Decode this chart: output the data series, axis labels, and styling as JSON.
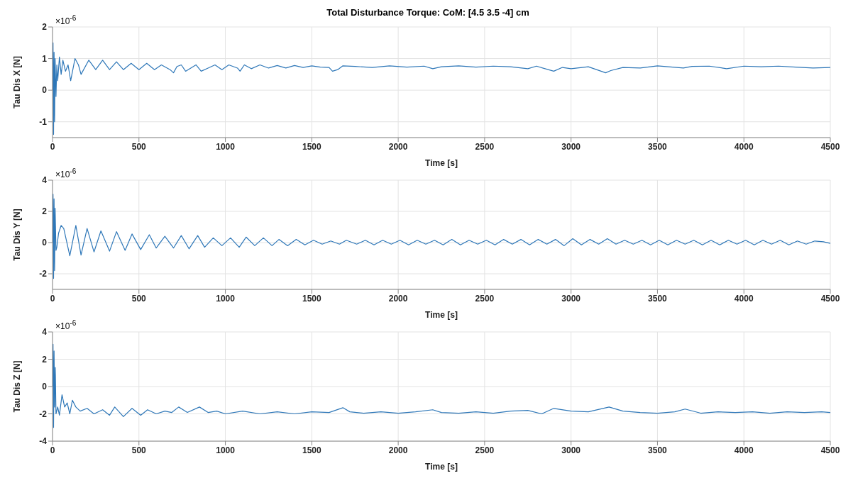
{
  "chart_data": [
    {
      "type": "line",
      "title": "Total Disturbance Torque: CoM: [4.5 3.5 -4] cm",
      "xlabel": "Time [s]",
      "ylabel": "Tau Dis X [N]",
      "annotations": [
        "×10$^{-6}$"
      ],
      "xlim": [
        0,
        4500
      ],
      "xticks": [
        0,
        500,
        1000,
        1500,
        2000,
        2500,
        3000,
        3500,
        4000,
        4500
      ],
      "ylim": [
        -1.5,
        2
      ],
      "yticks": [
        -1,
        0,
        1,
        2
      ],
      "grid": true,
      "series": [
        {
          "color": "#2e77b8",
          "x": [
            0,
            3,
            6,
            9,
            12,
            15,
            20,
            25,
            30,
            40,
            50,
            60,
            75,
            90,
            105,
            130,
            150,
            165,
            210,
            250,
            290,
            330,
            370,
            410,
            455,
            500,
            545,
            590,
            630,
            680,
            700,
            720,
            745,
            770,
            800,
            830,
            860,
            900,
            940,
            980,
            1020,
            1070,
            1085,
            1110,
            1150,
            1200,
            1250,
            1300,
            1350,
            1400,
            1450,
            1500,
            1550,
            1600,
            1620,
            1650,
            1680,
            1750,
            1850,
            1950,
            2050,
            2150,
            2200,
            2250,
            2350,
            2450,
            2550,
            2650,
            2750,
            2800,
            2900,
            2950,
            3000,
            3100,
            3200,
            3230,
            3300,
            3400,
            3500,
            3650,
            3700,
            3800,
            3900,
            4000,
            4100,
            4200,
            4300,
            4400,
            4500
          ],
          "values": [
            0,
            1.5,
            -1.4,
            1.2,
            -1.0,
            1.0,
            -0.2,
            0.8,
            0.3,
            1.05,
            0.5,
            0.95,
            0.6,
            0.8,
            0.3,
            1.0,
            0.8,
            0.5,
            0.95,
            0.65,
            0.95,
            0.65,
            0.9,
            0.65,
            0.85,
            0.65,
            0.85,
            0.65,
            0.8,
            0.65,
            0.55,
            0.75,
            0.8,
            0.6,
            0.7,
            0.8,
            0.6,
            0.7,
            0.8,
            0.65,
            0.8,
            0.7,
            0.6,
            0.8,
            0.68,
            0.8,
            0.7,
            0.78,
            0.7,
            0.78,
            0.72,
            0.77,
            0.73,
            0.72,
            0.6,
            0.65,
            0.77,
            0.75,
            0.72,
            0.77,
            0.73,
            0.76,
            0.68,
            0.74,
            0.77,
            0.73,
            0.76,
            0.74,
            0.68,
            0.76,
            0.6,
            0.72,
            0.68,
            0.74,
            0.55,
            0.62,
            0.72,
            0.7,
            0.77,
            0.7,
            0.75,
            0.76,
            0.68,
            0.76,
            0.74,
            0.76,
            0.73,
            0.7,
            0.72
          ]
        }
      ]
    },
    {
      "type": "line",
      "xlabel": "Time [s]",
      "ylabel": "Tau Dis Y [N]",
      "annotations": [
        "×10$^{-6}$"
      ],
      "xlim": [
        0,
        4500
      ],
      "xticks": [
        0,
        500,
        1000,
        1500,
        2000,
        2500,
        3000,
        3500,
        4000,
        4500
      ],
      "ylim": [
        -3,
        4
      ],
      "yticks": [
        -2,
        0,
        2,
        4
      ],
      "grid": true,
      "series": [
        {
          "color": "#2e77b8",
          "x": [
            0,
            3,
            6,
            9,
            12,
            15,
            20,
            25,
            35,
            50,
            65,
            100,
            135,
            165,
            200,
            240,
            280,
            330,
            370,
            420,
            460,
            510,
            560,
            600,
            650,
            700,
            745,
            790,
            840,
            880,
            930,
            980,
            1030,
            1080,
            1120,
            1170,
            1220,
            1270,
            1310,
            1360,
            1410,
            1460,
            1510,
            1560,
            1610,
            1660,
            1700,
            1760,
            1810,
            1860,
            1910,
            1960,
            2010,
            2060,
            2110,
            2160,
            2210,
            2260,
            2310,
            2360,
            2410,
            2460,
            2510,
            2560,
            2610,
            2660,
            2710,
            2760,
            2810,
            2860,
            2910,
            2960,
            3010,
            3060,
            3110,
            3160,
            3210,
            3260,
            3310,
            3360,
            3410,
            3460,
            3510,
            3560,
            3610,
            3660,
            3710,
            3760,
            3810,
            3860,
            3910,
            3960,
            4010,
            4060,
            4110,
            4160,
            4210,
            4260,
            4310,
            4360,
            4410,
            4460,
            4500
          ],
          "values": [
            0,
            3.1,
            -2.3,
            2.8,
            -1.8,
            2.2,
            -0.5,
            -0.3,
            0.6,
            1.1,
            0.9,
            -0.85,
            1.1,
            -0.8,
            0.9,
            -0.6,
            0.75,
            -0.55,
            0.7,
            -0.5,
            0.55,
            -0.45,
            0.5,
            -0.35,
            0.4,
            -0.35,
            0.45,
            -0.4,
            0.45,
            -0.3,
            0.3,
            -0.2,
            0.3,
            -0.3,
            0.35,
            -0.2,
            0.3,
            -0.2,
            0.2,
            -0.2,
            0.2,
            -0.15,
            0.15,
            -0.1,
            0.1,
            -0.1,
            0.15,
            -0.1,
            0.15,
            -0.15,
            0.15,
            -0.1,
            0.15,
            -0.15,
            0.15,
            -0.1,
            0.15,
            -0.15,
            0.2,
            -0.15,
            0.15,
            -0.1,
            0.15,
            -0.15,
            0.2,
            -0.1,
            0.2,
            -0.15,
            0.2,
            -0.1,
            0.2,
            -0.2,
            0.25,
            -0.15,
            0.2,
            -0.1,
            0.25,
            -0.1,
            0.15,
            -0.1,
            0.15,
            -0.15,
            0.15,
            -0.15,
            0.15,
            -0.1,
            0.15,
            -0.15,
            0.15,
            -0.15,
            0.15,
            -0.1,
            0.15,
            -0.15,
            0.15,
            -0.1,
            0.15,
            -0.15,
            0.1,
            -0.1,
            0.1,
            0.05,
            -0.05
          ]
        }
      ]
    },
    {
      "type": "line",
      "xlabel": "Time [s]",
      "ylabel": "Tau Dis Z [N]",
      "annotations": [
        "×10$^{-6}$"
      ],
      "xlim": [
        0,
        4500
      ],
      "xticks": [
        0,
        500,
        1000,
        1500,
        2000,
        2500,
        3000,
        3500,
        4000,
        4500
      ],
      "ylim": [
        -4,
        4
      ],
      "yticks": [
        -4,
        -2,
        0,
        2,
        4
      ],
      "grid": true,
      "series": [
        {
          "color": "#2e77b8",
          "x": [
            0,
            3,
            6,
            9,
            12,
            16,
            20,
            30,
            40,
            55,
            70,
            85,
            100,
            115,
            135,
            160,
            200,
            240,
            290,
            330,
            360,
            410,
            460,
            510,
            550,
            600,
            650,
            690,
            730,
            780,
            850,
            900,
            950,
            1000,
            1100,
            1200,
            1300,
            1400,
            1500,
            1600,
            1680,
            1720,
            1800,
            1900,
            2000,
            2100,
            2200,
            2250,
            2350,
            2450,
            2550,
            2650,
            2750,
            2830,
            2900,
            3000,
            3100,
            3220,
            3300,
            3400,
            3500,
            3600,
            3660,
            3750,
            3850,
            3950,
            4050,
            4150,
            4250,
            4350,
            4450,
            4500
          ],
          "values": [
            0,
            3.1,
            -3.0,
            2.6,
            -1.5,
            1.4,
            -2.0,
            -1.5,
            -2.1,
            -0.6,
            -1.5,
            -1.2,
            -2.0,
            -1.0,
            -1.5,
            -1.8,
            -1.6,
            -2.0,
            -1.7,
            -2.1,
            -1.5,
            -2.2,
            -1.6,
            -2.1,
            -1.7,
            -2.0,
            -1.8,
            -1.9,
            -1.5,
            -1.9,
            -1.5,
            -1.9,
            -1.8,
            -2.0,
            -1.8,
            -2.0,
            -1.85,
            -2.0,
            -1.85,
            -1.9,
            -1.55,
            -1.85,
            -1.95,
            -1.85,
            -1.95,
            -1.85,
            -1.7,
            -1.9,
            -1.95,
            -1.85,
            -1.95,
            -1.8,
            -1.75,
            -2.0,
            -1.6,
            -1.8,
            -1.85,
            -1.5,
            -1.8,
            -1.9,
            -1.95,
            -1.85,
            -1.65,
            -1.95,
            -1.85,
            -1.9,
            -1.85,
            -1.95,
            -1.85,
            -1.9,
            -1.85,
            -1.9
          ]
        }
      ]
    }
  ]
}
